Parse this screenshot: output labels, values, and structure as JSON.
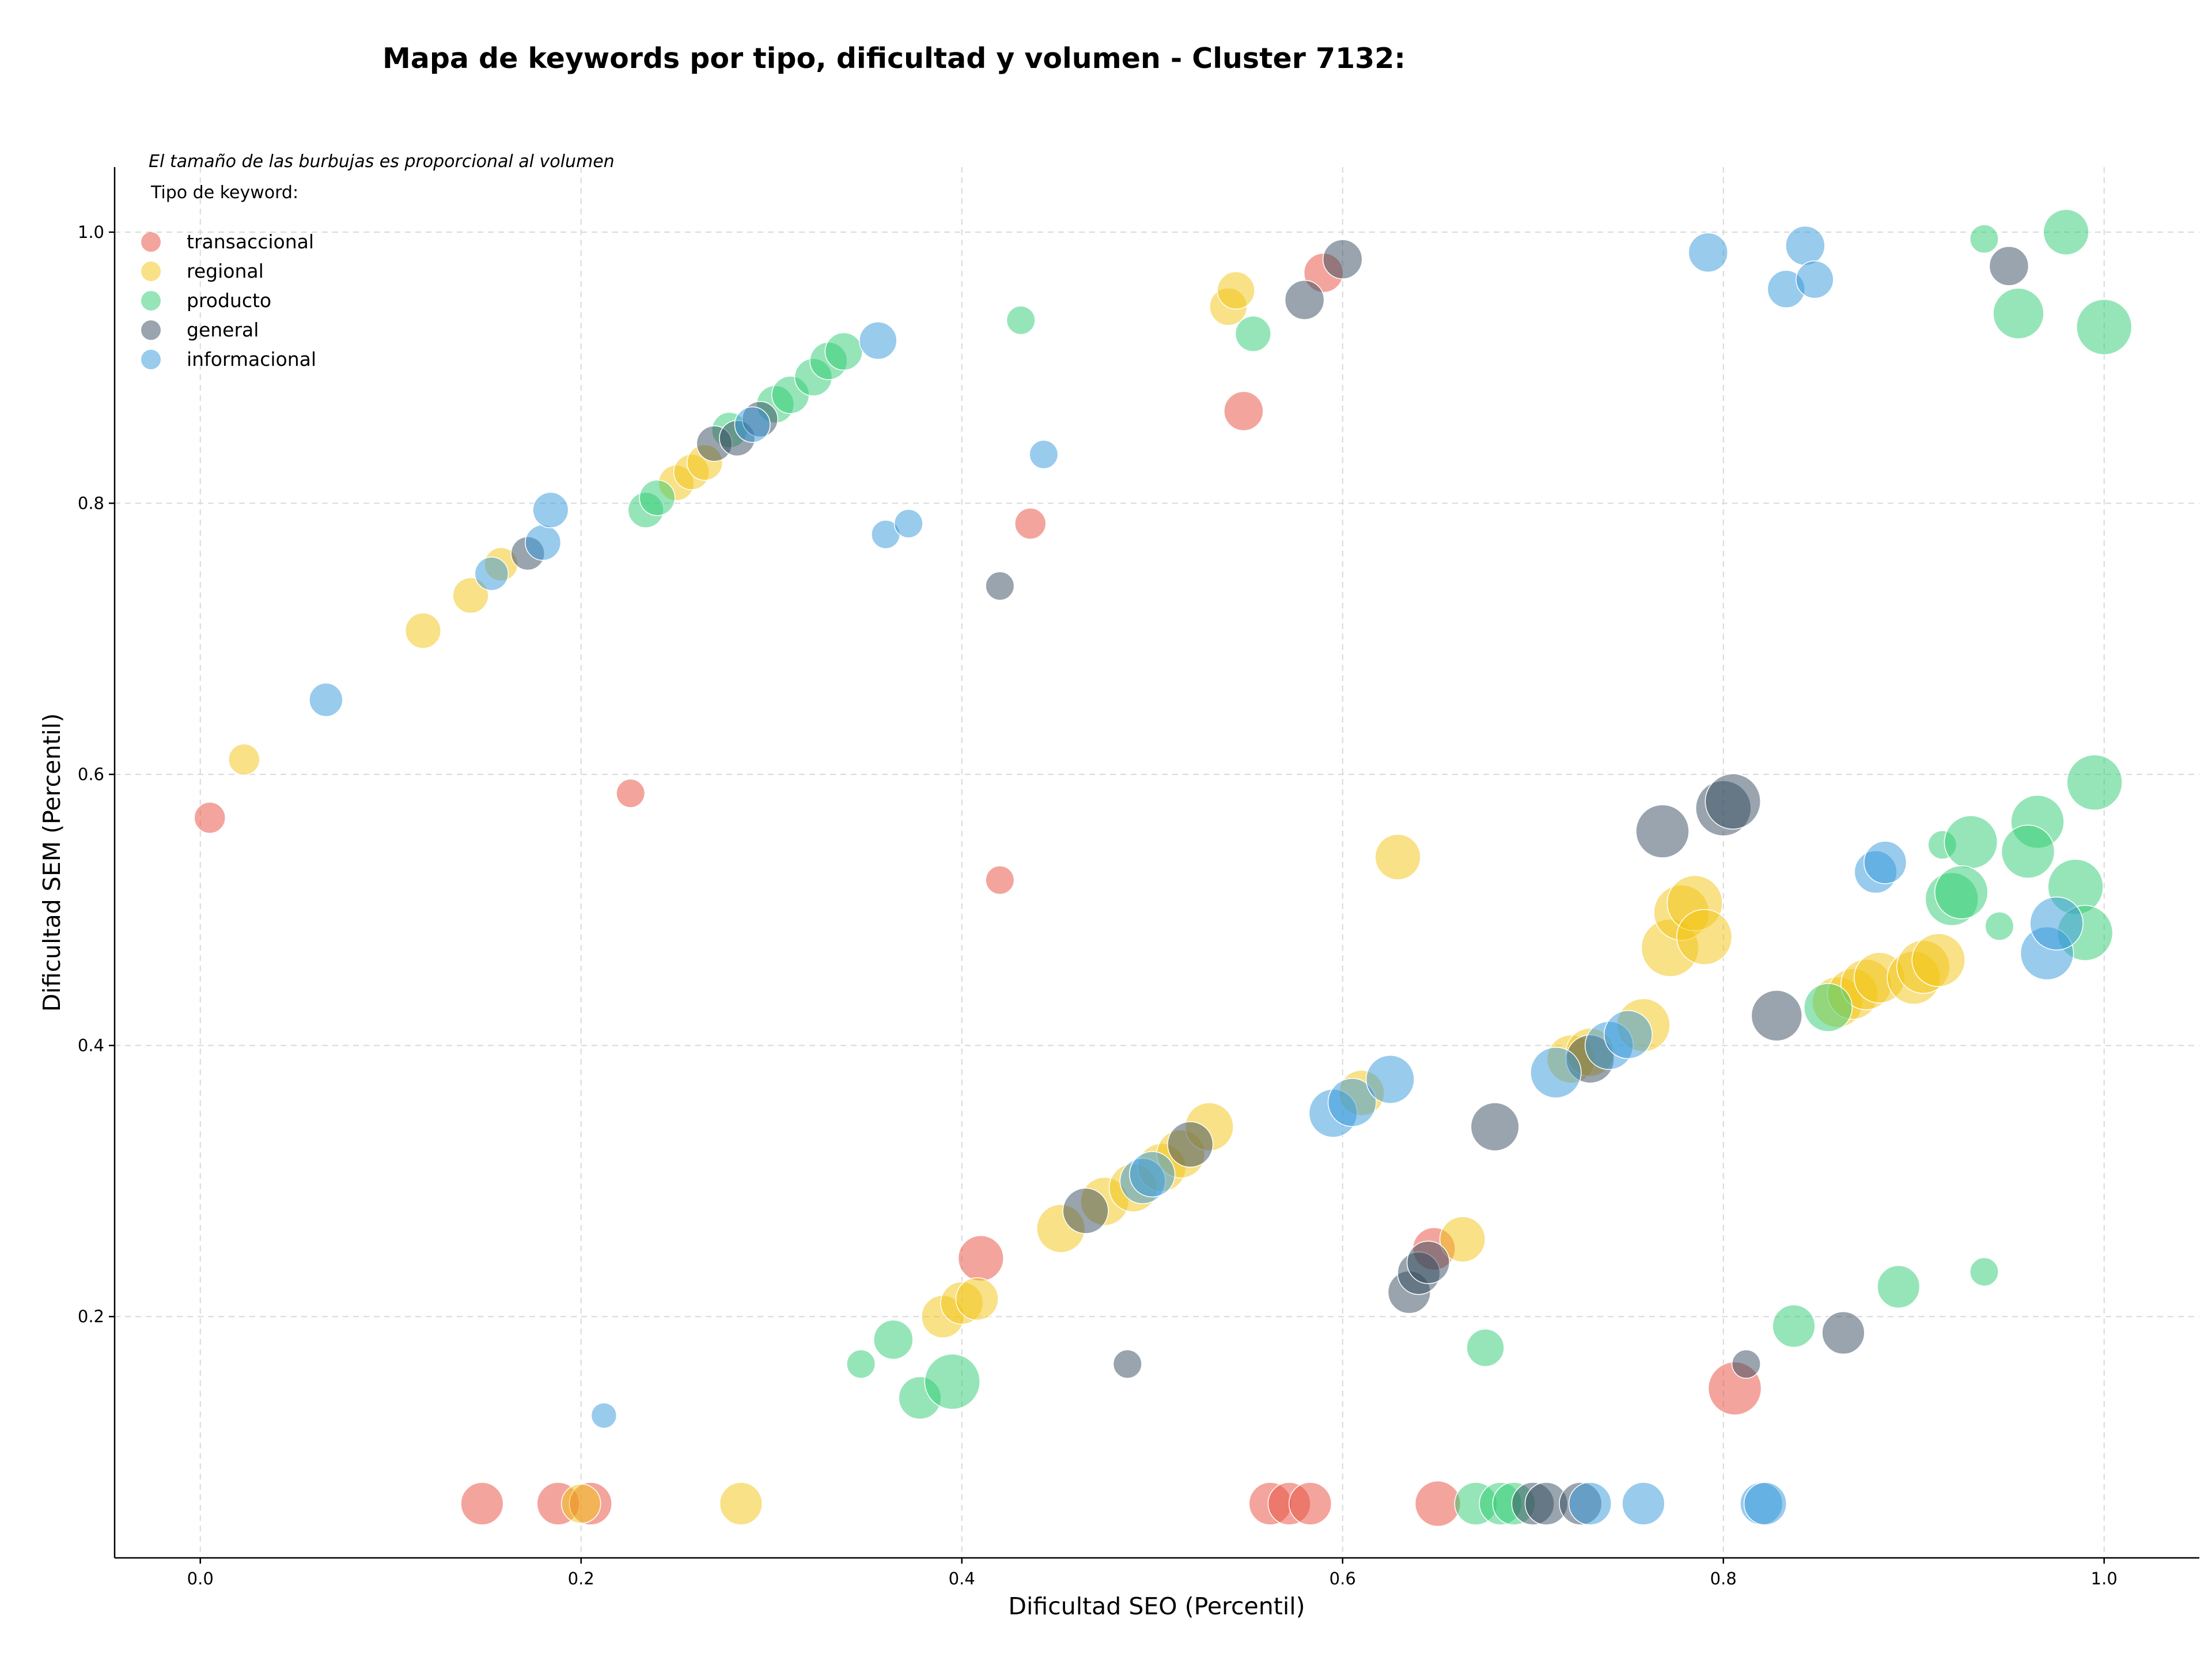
{
  "chart_data": {
    "type": "scatter",
    "title": "Mapa de keywords por tipo, dificultad y volumen - Cluster 7132:",
    "xlabel": "Dificultad SEO (Percentil)",
    "ylabel": "Dificultad SEM (Percentil)",
    "annotation": "El tamaño de las burbujas es proporcional al volumen",
    "legend_title": "Tipo de keyword:",
    "legend_position": "top-left",
    "grid": true,
    "xlim": [
      -0.045,
      1.05
    ],
    "ylim": [
      0.022,
      1.048
    ],
    "x_ticks": [
      0.0,
      0.2,
      0.4,
      0.6,
      0.8,
      1.0
    ],
    "x_tick_labels": [
      "0.0",
      "0.2",
      "0.4",
      "0.6",
      "0.8",
      "1.0"
    ],
    "y_ticks": [
      0.2,
      0.4,
      0.6,
      0.8,
      1.0
    ],
    "y_tick_labels": [
      "0.2",
      "0.4",
      "0.6",
      "0.8",
      "1.0"
    ],
    "size_encoding": "volume",
    "series": [
      {
        "name": "transaccional",
        "color": "#e74c3c",
        "points": [
          {
            "x": 0.005,
            "y": 0.568,
            "size": 2
          },
          {
            "x": 0.226,
            "y": 0.586,
            "size": 1.5
          },
          {
            "x": 0.42,
            "y": 0.522,
            "size": 1.5
          },
          {
            "x": 0.436,
            "y": 0.785,
            "size": 2
          },
          {
            "x": 0.548,
            "y": 0.868,
            "size": 4
          },
          {
            "x": 0.59,
            "y": 0.97,
            "size": 4
          },
          {
            "x": 0.41,
            "y": 0.243,
            "size": 6
          },
          {
            "x": 0.148,
            "y": 0.062,
            "size": 5
          },
          {
            "x": 0.188,
            "y": 0.062,
            "size": 5
          },
          {
            "x": 0.205,
            "y": 0.062,
            "size": 5
          },
          {
            "x": 0.562,
            "y": 0.062,
            "size": 5
          },
          {
            "x": 0.572,
            "y": 0.062,
            "size": 5
          },
          {
            "x": 0.583,
            "y": 0.062,
            "size": 5
          },
          {
            "x": 0.65,
            "y": 0.062,
            "size": 6
          },
          {
            "x": 0.806,
            "y": 0.147,
            "size": 9
          },
          {
            "x": 0.648,
            "y": 0.25,
            "size": 5
          }
        ]
      },
      {
        "name": "regional",
        "color": "#f1c40f",
        "points": [
          {
            "x": 0.023,
            "y": 0.611,
            "size": 2
          },
          {
            "x": 0.117,
            "y": 0.706,
            "size": 3
          },
          {
            "x": 0.142,
            "y": 0.732,
            "size": 3
          },
          {
            "x": 0.158,
            "y": 0.755,
            "size": 2.5
          },
          {
            "x": 0.25,
            "y": 0.815,
            "size": 3
          },
          {
            "x": 0.258,
            "y": 0.823,
            "size": 3
          },
          {
            "x": 0.265,
            "y": 0.83,
            "size": 3
          },
          {
            "x": 0.54,
            "y": 0.945,
            "size": 3.5
          },
          {
            "x": 0.544,
            "y": 0.957,
            "size": 3.5
          },
          {
            "x": 0.629,
            "y": 0.539,
            "size": 6
          },
          {
            "x": 0.2,
            "y": 0.062,
            "size": 4
          },
          {
            "x": 0.284,
            "y": 0.062,
            "size": 5
          },
          {
            "x": 0.39,
            "y": 0.2,
            "size": 5
          },
          {
            "x": 0.4,
            "y": 0.21,
            "size": 5
          },
          {
            "x": 0.408,
            "y": 0.213,
            "size": 5
          },
          {
            "x": 0.452,
            "y": 0.265,
            "size": 7
          },
          {
            "x": 0.475,
            "y": 0.285,
            "size": 7
          },
          {
            "x": 0.49,
            "y": 0.295,
            "size": 7
          },
          {
            "x": 0.505,
            "y": 0.31,
            "size": 7
          },
          {
            "x": 0.515,
            "y": 0.32,
            "size": 7
          },
          {
            "x": 0.53,
            "y": 0.34,
            "size": 7
          },
          {
            "x": 0.61,
            "y": 0.365,
            "size": 6
          },
          {
            "x": 0.663,
            "y": 0.257,
            "size": 6
          },
          {
            "x": 0.72,
            "y": 0.39,
            "size": 7
          },
          {
            "x": 0.73,
            "y": 0.395,
            "size": 7
          },
          {
            "x": 0.758,
            "y": 0.415,
            "size": 9
          },
          {
            "x": 0.772,
            "y": 0.472,
            "size": 11
          },
          {
            "x": 0.778,
            "y": 0.498,
            "size": 10
          },
          {
            "x": 0.785,
            "y": 0.505,
            "size": 10
          },
          {
            "x": 0.79,
            "y": 0.48,
            "size": 10
          },
          {
            "x": 0.86,
            "y": 0.432,
            "size": 8
          },
          {
            "x": 0.868,
            "y": 0.438,
            "size": 8
          },
          {
            "x": 0.875,
            "y": 0.445,
            "size": 8
          },
          {
            "x": 0.882,
            "y": 0.45,
            "size": 8
          },
          {
            "x": 0.9,
            "y": 0.45,
            "size": 9
          },
          {
            "x": 0.905,
            "y": 0.458,
            "size": 9
          },
          {
            "x": 0.913,
            "y": 0.463,
            "size": 9
          }
        ]
      },
      {
        "name": "producto",
        "color": "#2ecc71",
        "points": [
          {
            "x": 0.234,
            "y": 0.795,
            "size": 3
          },
          {
            "x": 0.24,
            "y": 0.804,
            "size": 3
          },
          {
            "x": 0.278,
            "y": 0.854,
            "size": 3
          },
          {
            "x": 0.302,
            "y": 0.873,
            "size": 3.5
          },
          {
            "x": 0.31,
            "y": 0.88,
            "size": 3.5
          },
          {
            "x": 0.322,
            "y": 0.893,
            "size": 3.5
          },
          {
            "x": 0.33,
            "y": 0.905,
            "size": 3.5
          },
          {
            "x": 0.338,
            "y": 0.912,
            "size": 3.5
          },
          {
            "x": 0.431,
            "y": 0.935,
            "size": 1.5
          },
          {
            "x": 0.553,
            "y": 0.925,
            "size": 3
          },
          {
            "x": 0.937,
            "y": 0.995,
            "size": 1.5
          },
          {
            "x": 0.98,
            "y": 1.0,
            "size": 6
          },
          {
            "x": 0.955,
            "y": 0.94,
            "size": 8
          },
          {
            "x": 1.0,
            "y": 0.93,
            "size": 10
          },
          {
            "x": 0.347,
            "y": 0.165,
            "size": 1.5
          },
          {
            "x": 0.364,
            "y": 0.183,
            "size": 4
          },
          {
            "x": 0.378,
            "y": 0.14,
            "size": 5
          },
          {
            "x": 0.395,
            "y": 0.152,
            "size": 10
          },
          {
            "x": 0.67,
            "y": 0.062,
            "size": 5
          },
          {
            "x": 0.683,
            "y": 0.062,
            "size": 5
          },
          {
            "x": 0.69,
            "y": 0.062,
            "size": 5
          },
          {
            "x": 0.675,
            "y": 0.177,
            "size": 3.5
          },
          {
            "x": 0.837,
            "y": 0.193,
            "size": 5
          },
          {
            "x": 0.892,
            "y": 0.222,
            "size": 5
          },
          {
            "x": 0.937,
            "y": 0.233,
            "size": 1.5
          },
          {
            "x": 0.915,
            "y": 0.548,
            "size": 1.5
          },
          {
            "x": 0.93,
            "y": 0.55,
            "size": 9
          },
          {
            "x": 0.965,
            "y": 0.565,
            "size": 9
          },
          {
            "x": 0.96,
            "y": 0.543,
            "size": 9
          },
          {
            "x": 0.995,
            "y": 0.594,
            "size": 10
          },
          {
            "x": 0.945,
            "y": 0.488,
            "size": 1.5
          },
          {
            "x": 0.92,
            "y": 0.508,
            "size": 9
          },
          {
            "x": 0.925,
            "y": 0.513,
            "size": 9
          },
          {
            "x": 0.985,
            "y": 0.517,
            "size": 10
          },
          {
            "x": 0.99,
            "y": 0.483,
            "size": 10
          },
          {
            "x": 0.855,
            "y": 0.428,
            "size": 7
          }
        ]
      },
      {
        "name": "general",
        "color": "#34495e",
        "points": [
          {
            "x": 0.172,
            "y": 0.763,
            "size": 2.5
          },
          {
            "x": 0.27,
            "y": 0.844,
            "size": 3
          },
          {
            "x": 0.282,
            "y": 0.848,
            "size": 3
          },
          {
            "x": 0.294,
            "y": 0.862,
            "size": 3
          },
          {
            "x": 0.42,
            "y": 0.739,
            "size": 1.5
          },
          {
            "x": 0.58,
            "y": 0.95,
            "size": 4
          },
          {
            "x": 0.6,
            "y": 0.98,
            "size": 4
          },
          {
            "x": 0.95,
            "y": 0.975,
            "size": 4
          },
          {
            "x": 0.487,
            "y": 0.165,
            "size": 1.5
          },
          {
            "x": 0.465,
            "y": 0.278,
            "size": 6
          },
          {
            "x": 0.52,
            "y": 0.327,
            "size": 6
          },
          {
            "x": 0.635,
            "y": 0.218,
            "size": 5
          },
          {
            "x": 0.64,
            "y": 0.232,
            "size": 5
          },
          {
            "x": 0.645,
            "y": 0.24,
            "size": 5
          },
          {
            "x": 0.68,
            "y": 0.34,
            "size": 7
          },
          {
            "x": 0.7,
            "y": 0.062,
            "size": 5
          },
          {
            "x": 0.707,
            "y": 0.062,
            "size": 5
          },
          {
            "x": 0.725,
            "y": 0.062,
            "size": 5
          },
          {
            "x": 0.73,
            "y": 0.39,
            "size": 7
          },
          {
            "x": 0.768,
            "y": 0.558,
            "size": 9
          },
          {
            "x": 0.8,
            "y": 0.575,
            "size": 10
          },
          {
            "x": 0.805,
            "y": 0.58,
            "size": 10
          },
          {
            "x": 0.812,
            "y": 0.165,
            "size": 1.5
          },
          {
            "x": 0.828,
            "y": 0.422,
            "size": 8
          },
          {
            "x": 0.863,
            "y": 0.188,
            "size": 5
          }
        ]
      },
      {
        "name": "informacional",
        "color": "#3498db",
        "points": [
          {
            "x": 0.066,
            "y": 0.655,
            "size": 2.5
          },
          {
            "x": 0.153,
            "y": 0.748,
            "size": 2.5
          },
          {
            "x": 0.18,
            "y": 0.771,
            "size": 3
          },
          {
            "x": 0.184,
            "y": 0.795,
            "size": 3
          },
          {
            "x": 0.29,
            "y": 0.858,
            "size": 3
          },
          {
            "x": 0.356,
            "y": 0.92,
            "size": 3.5
          },
          {
            "x": 0.36,
            "y": 0.777,
            "size": 1.5
          },
          {
            "x": 0.372,
            "y": 0.785,
            "size": 1.5
          },
          {
            "x": 0.443,
            "y": 0.836,
            "size": 1.5
          },
          {
            "x": 0.212,
            "y": 0.127,
            "size": 1
          },
          {
            "x": 0.792,
            "y": 0.985,
            "size": 4
          },
          {
            "x": 0.833,
            "y": 0.958,
            "size": 3.5
          },
          {
            "x": 0.843,
            "y": 0.99,
            "size": 4
          },
          {
            "x": 0.848,
            "y": 0.965,
            "size": 3.5
          },
          {
            "x": 0.495,
            "y": 0.3,
            "size": 6
          },
          {
            "x": 0.5,
            "y": 0.305,
            "size": 6
          },
          {
            "x": 0.595,
            "y": 0.35,
            "size": 7
          },
          {
            "x": 0.605,
            "y": 0.358,
            "size": 7
          },
          {
            "x": 0.625,
            "y": 0.375,
            "size": 7
          },
          {
            "x": 0.712,
            "y": 0.38,
            "size": 8
          },
          {
            "x": 0.74,
            "y": 0.4,
            "size": 7
          },
          {
            "x": 0.75,
            "y": 0.408,
            "size": 7
          },
          {
            "x": 0.73,
            "y": 0.062,
            "size": 5
          },
          {
            "x": 0.758,
            "y": 0.062,
            "size": 5
          },
          {
            "x": 0.82,
            "y": 0.062,
            "size": 5
          },
          {
            "x": 0.822,
            "y": 0.062,
            "size": 5
          },
          {
            "x": 0.88,
            "y": 0.528,
            "size": 5
          },
          {
            "x": 0.885,
            "y": 0.535,
            "size": 5
          },
          {
            "x": 0.97,
            "y": 0.468,
            "size": 9
          },
          {
            "x": 0.975,
            "y": 0.49,
            "size": 9
          }
        ]
      }
    ]
  }
}
